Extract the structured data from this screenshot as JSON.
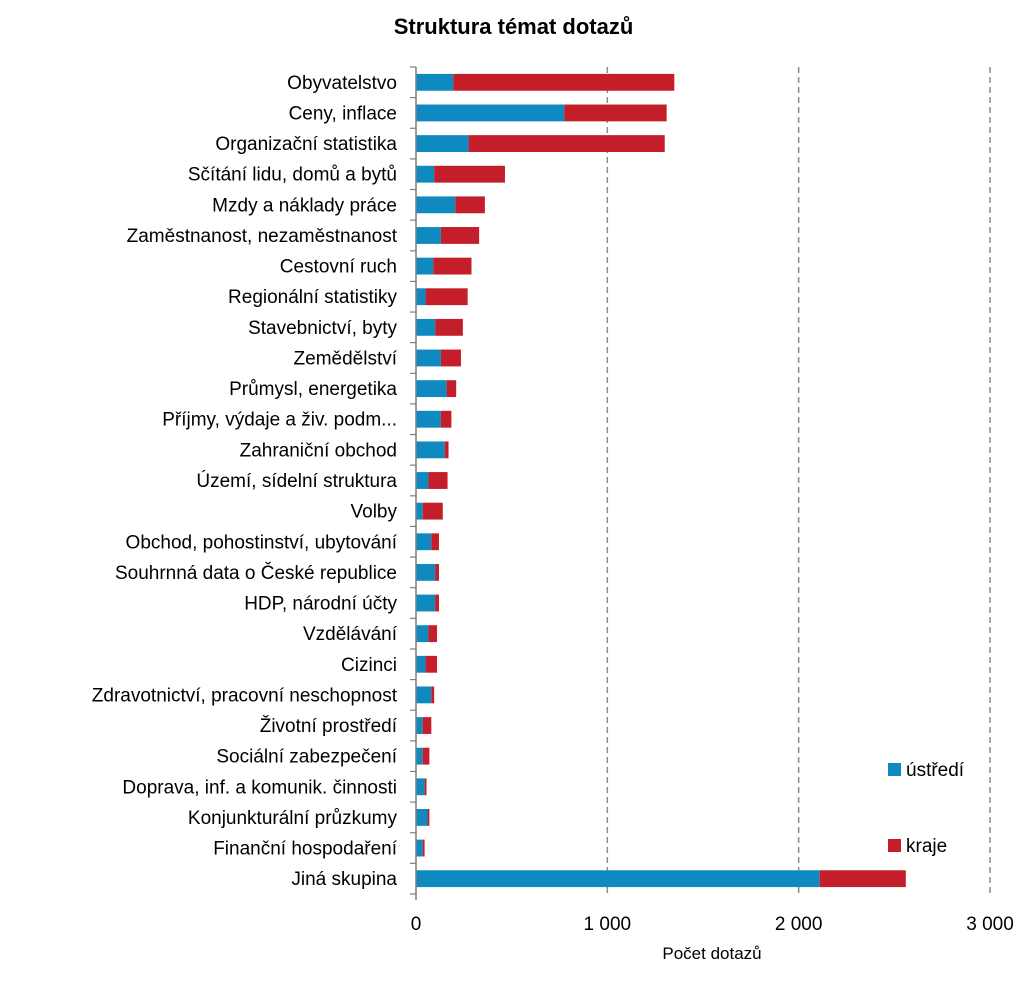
{
  "chart_data": {
    "type": "bar",
    "orientation": "horizontal",
    "stacked": true,
    "title": "Struktura témat dotazů",
    "xlabel": "Počet dotazů",
    "ylabel": "",
    "xlim": [
      0,
      3000
    ],
    "x_ticks": [
      0,
      1000,
      2000,
      3000
    ],
    "x_tick_labels": [
      "0",
      "1 000",
      "2 000",
      "3 000"
    ],
    "grid": "vertical dashed",
    "legend_position": "right",
    "categories": [
      "Obyvatelstvo",
      "Ceny, inflace",
      "Organizační statistika",
      "Sčítání lidu, domů a bytů",
      "Mzdy a náklady práce",
      "Zaměstnanost, nezaměstnanost",
      "Cestovní ruch",
      "Regionální statistiky",
      "Stavebnictví, byty",
      "Zemědělství",
      "Průmysl, energetika",
      "Příjmy, výdaje a živ. podm...",
      "Zahraniční obchod",
      "Území, sídelní struktura",
      "Volby",
      "Obchod, pohostinství, ubytování",
      "Souhrnná data o České republice",
      "HDP, národní účty",
      "Vzdělávání",
      "Cizinci",
      "Zdravotnictví, pracovní neschopnost",
      "Životní prostředí",
      "Sociální zabezpečení",
      "Doprava, inf. a komunik. činnosti",
      "Konjunkturální průzkumy",
      "Finanční hospodaření",
      "Jiná skupina"
    ],
    "series": [
      {
        "name": "ústředí",
        "color": "#0f8ac0",
        "values": [
          195,
          775,
          275,
          95,
          205,
          130,
          90,
          50,
          100,
          130,
          160,
          130,
          150,
          65,
          35,
          80,
          100,
          100,
          65,
          50,
          80,
          35,
          35,
          45,
          60,
          35,
          2110
        ]
      },
      {
        "name": "kraje",
        "color": "#c41e2a",
        "values": [
          1155,
          535,
          1025,
          370,
          155,
          200,
          200,
          220,
          145,
          105,
          50,
          55,
          20,
          100,
          105,
          40,
          20,
          20,
          45,
          60,
          15,
          45,
          35,
          10,
          10,
          10,
          450
        ]
      }
    ]
  }
}
